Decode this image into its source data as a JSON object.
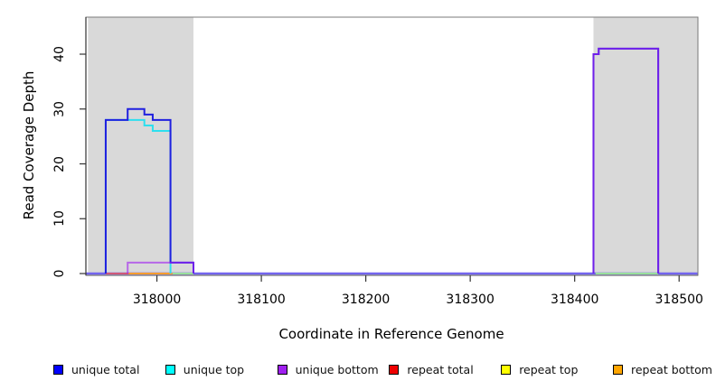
{
  "chart_data": {
    "type": "line",
    "subtype": "step-coverage",
    "xlabel": "Coordinate in Reference Genome",
    "ylabel": "Read Coverage Depth",
    "xlim": [
      317932,
      318518
    ],
    "ylim": [
      0,
      46.75
    ],
    "x_ticks": [
      318000,
      318100,
      318200,
      318300,
      318400,
      318500
    ],
    "y_ticks": [
      0,
      10,
      20,
      30,
      40
    ],
    "grid": "off",
    "legend_position": "bottom",
    "background_color": "#FFFFFF",
    "repeat_regions": {
      "color": "#D9D9D9",
      "ranges": [
        [
          317934,
          318035
        ],
        [
          318418,
          318518
        ]
      ]
    },
    "baseline": {
      "value": 0,
      "color": "#7365EE"
    },
    "series": [
      {
        "name": "unique total",
        "legend_color": "#0000FF",
        "plot_color": "#2020DF",
        "blocks": [
          [
            [
              317951,
              28
            ],
            [
              317972,
              30
            ],
            [
              317988,
              29
            ],
            [
              317996,
              28
            ],
            [
              318013,
              2
            ],
            [
              318035,
              0
            ]
          ],
          [
            [
              318418,
              40
            ],
            [
              318423,
              41
            ],
            [
              318480,
              0
            ]
          ]
        ]
      },
      {
        "name": "unique top",
        "legend_color": "#00FFFF",
        "plot_color": "#2EDFEE",
        "blocks": [
          [
            [
              317951,
              28
            ],
            [
              317988,
              27
            ],
            [
              317996,
              26
            ],
            [
              318013,
              0
            ]
          ]
        ]
      },
      {
        "name": "unique bottom",
        "legend_color": "#A020F0",
        "plot_color": "#A020F0",
        "plot_opacity": 0.62,
        "blocks": [
          [
            [
              317972,
              2
            ],
            [
              318035,
              0
            ]
          ],
          [
            [
              318418,
              40
            ],
            [
              318423,
              41
            ],
            [
              318480,
              0
            ]
          ]
        ]
      },
      {
        "name": "repeat total",
        "legend_color": "#EE0000",
        "plot_color": "#D05878",
        "zero_segments": [
          [
            317951,
            317973
          ]
        ]
      },
      {
        "name": "repeat top",
        "legend_color": "#FFFF00",
        "plot_color": "#FFFF00",
        "zero_segments": []
      },
      {
        "name": "repeat bottom",
        "legend_color": "#FFA500",
        "plot_color": "#FF9D2E",
        "zero_segments": [
          [
            317973,
            318015
          ]
        ]
      }
    ],
    "zero_level_green_marks": {
      "color": "#98E09A",
      "segments": [
        [
          318015,
          318035
        ],
        [
          318420,
          318480
        ]
      ]
    }
  }
}
